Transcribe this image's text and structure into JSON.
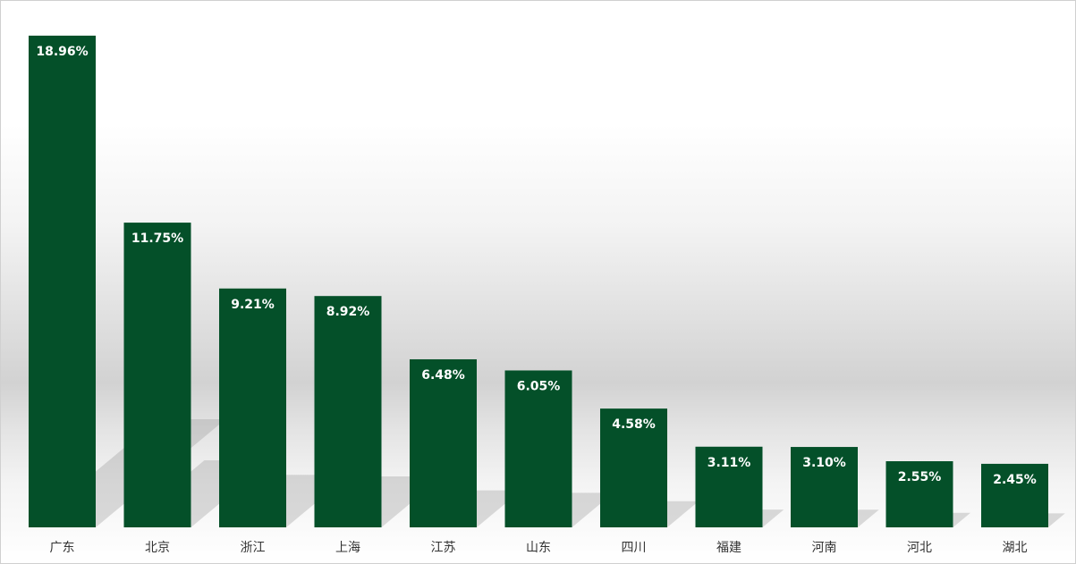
{
  "chart_data": {
    "type": "bar",
    "title": "",
    "xlabel": "",
    "ylabel": "",
    "categories": [
      "广东",
      "北京",
      "浙江",
      "上海",
      "江苏",
      "山东",
      "四川",
      "福建",
      "河南",
      "河北",
      "湖北"
    ],
    "values": [
      18.96,
      11.75,
      9.21,
      8.92,
      6.48,
      6.05,
      4.58,
      3.11,
      3.1,
      2.55,
      2.45
    ],
    "data_labels": [
      "18.96%",
      "11.75%",
      "9.21%",
      "8.92%",
      "6.48%",
      "6.05%",
      "4.58%",
      "3.11%",
      "3.10%",
      "2.55%",
      "2.45%"
    ],
    "unit": "%",
    "ylim": [
      0,
      20.3
    ],
    "grid": false,
    "legend": "none",
    "bar_color": "#045029"
  }
}
